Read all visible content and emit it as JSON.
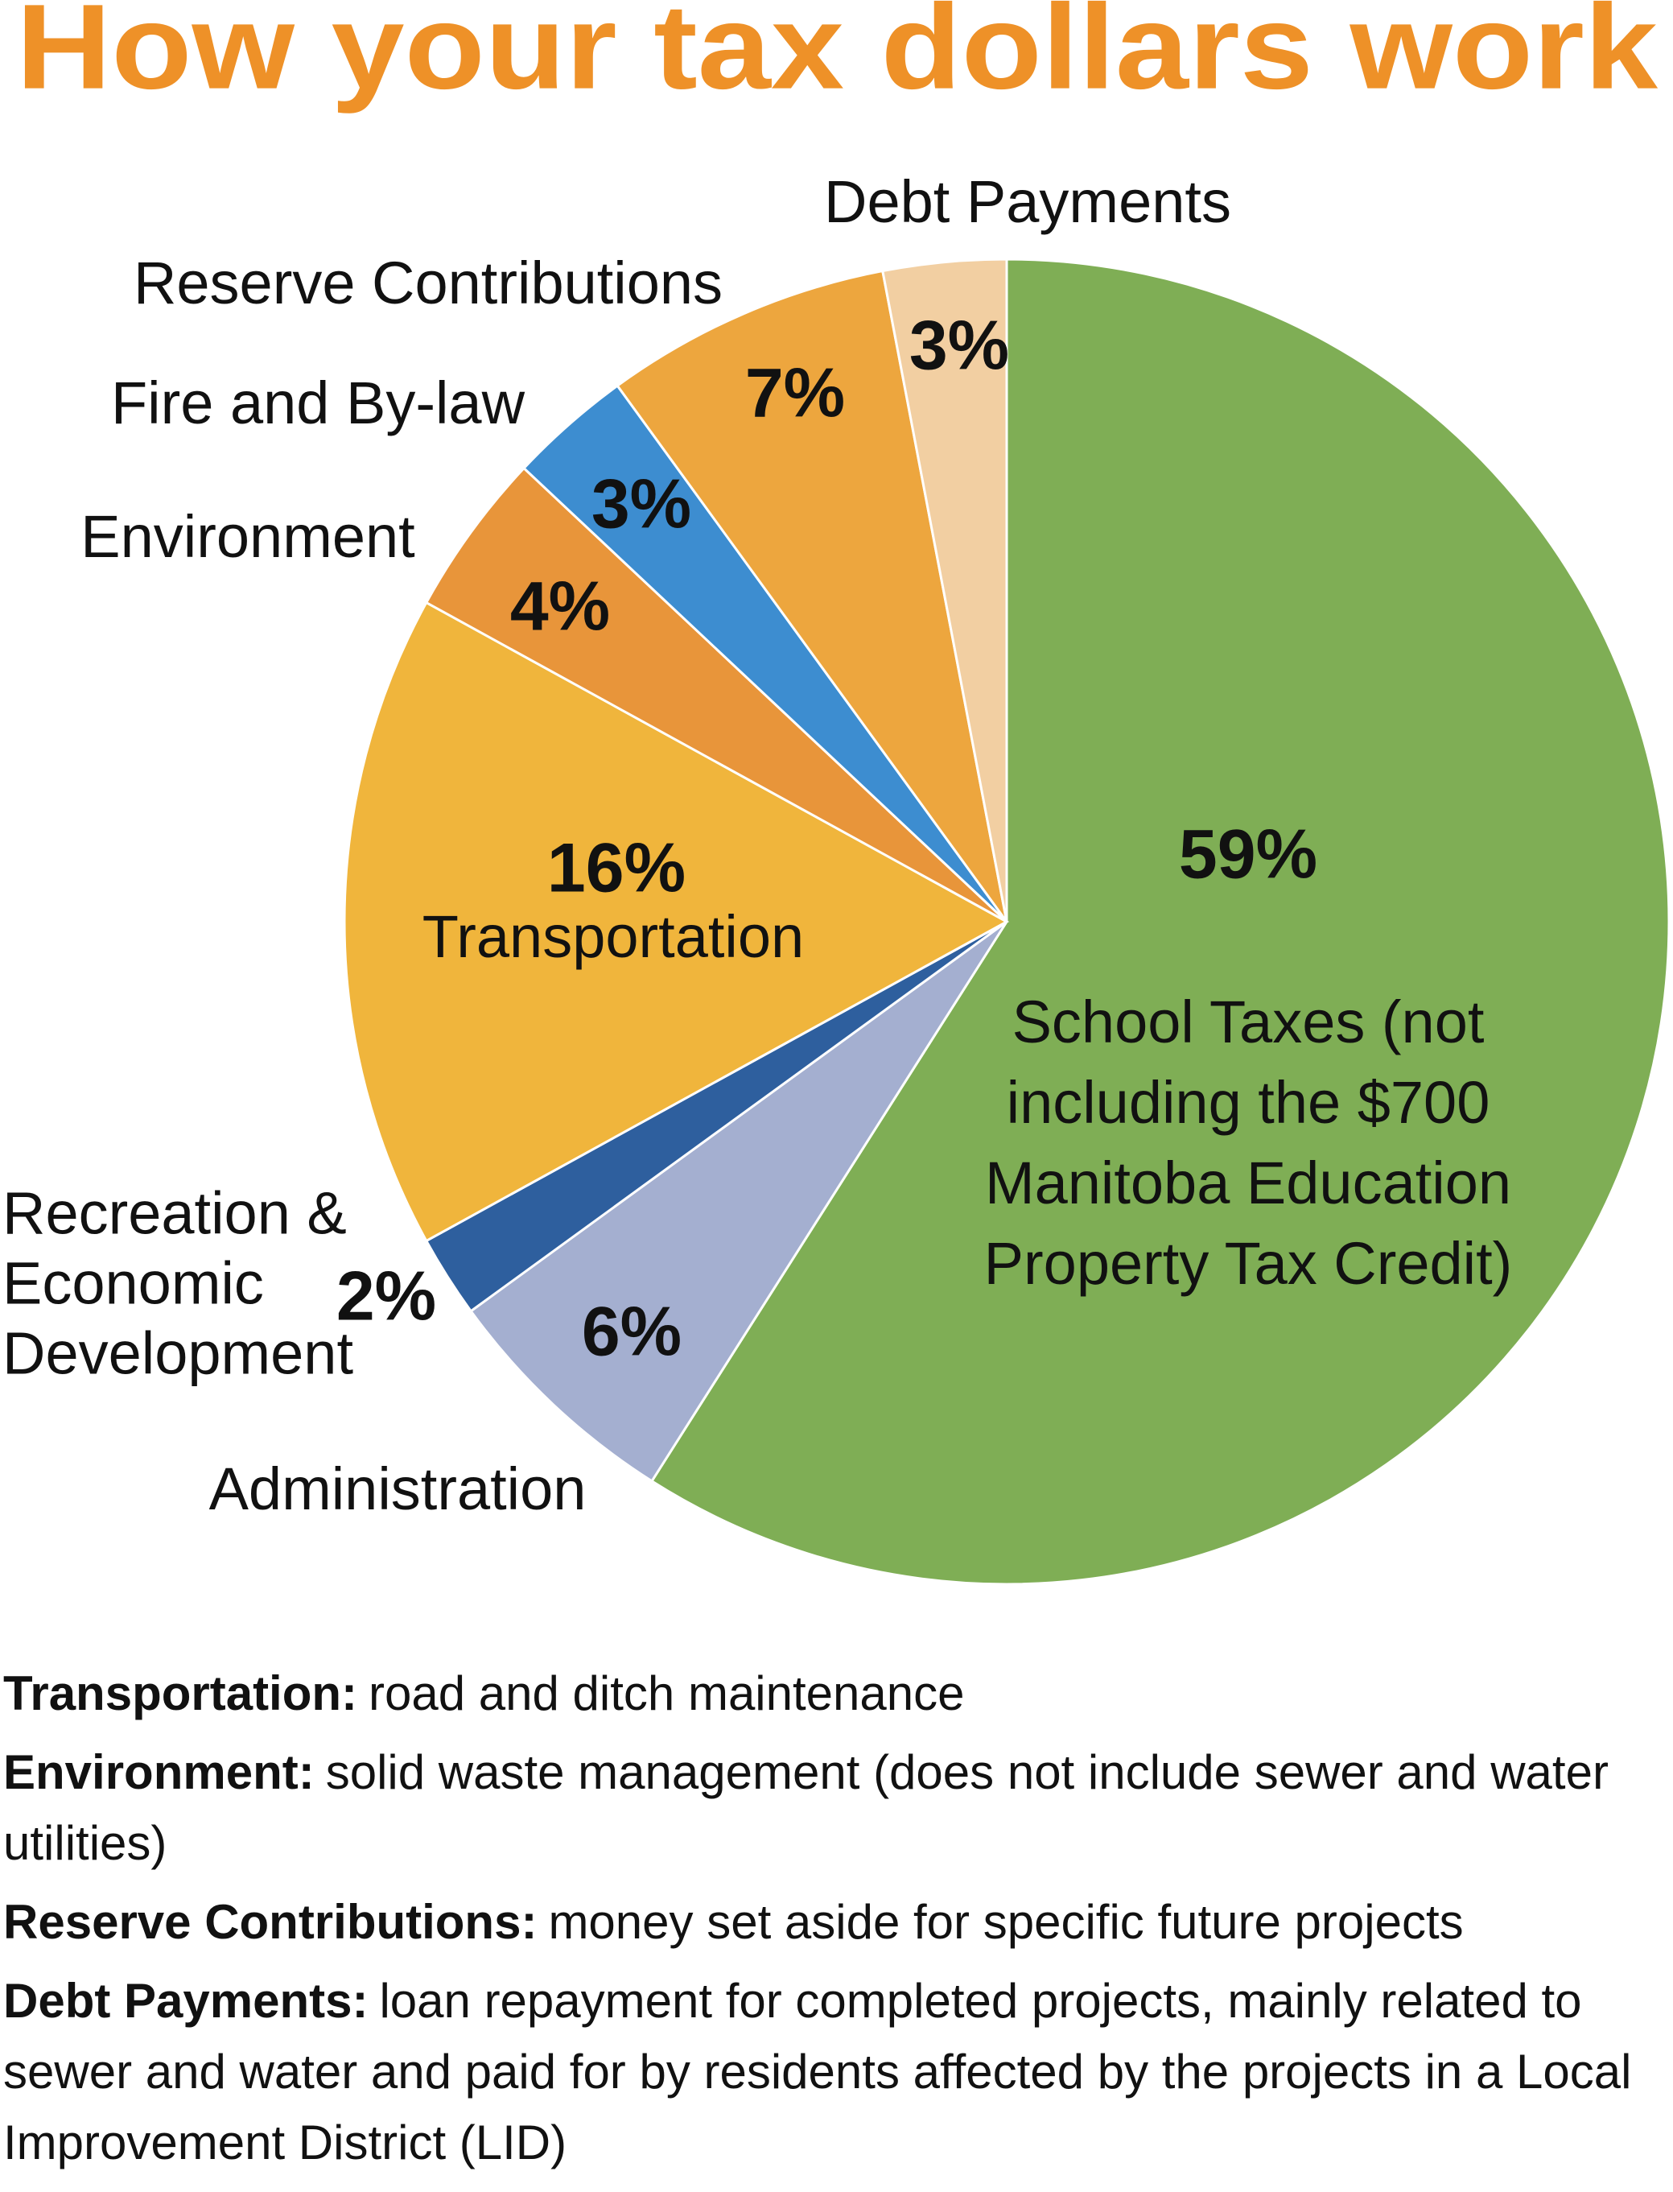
{
  "chart_data": {
    "type": "pie",
    "title": "How your tax dollars work",
    "categories": [
      "School Taxes (not including the $700 Manitoba Education Property Tax Credit)",
      "Administration",
      "Recreation & Economic Development",
      "Transportation",
      "Environment",
      "Fire and By-law",
      "Reserve Contributions",
      "Debt Payments"
    ],
    "values": [
      59,
      6,
      2,
      16,
      4,
      3,
      7,
      3
    ],
    "value_labels": [
      "59%",
      "6%",
      "2%",
      "16%",
      "4%",
      "3%",
      "7%",
      "3%"
    ],
    "colors": [
      "#7fae55",
      "#a4afd0",
      "#2e5f9e",
      "#f0b53c",
      "#e8953a",
      "#3d8dd0",
      "#eda63e",
      "#f2cfa2"
    ]
  },
  "definitions": [
    {
      "term": "Transportation:",
      "text": "road and ditch maintenance"
    },
    {
      "term": "Environment:",
      "text": "solid waste management (does not include sewer and water utilities)"
    },
    {
      "term": "Reserve Contributions:",
      "text": "money set aside for specific future projects"
    },
    {
      "term": "Debt Payments:",
      "text": "loan repayment for completed projects, mainly related to sewer and water and paid for by residents affected by the projects in a Local Improvement District (LID)"
    }
  ]
}
